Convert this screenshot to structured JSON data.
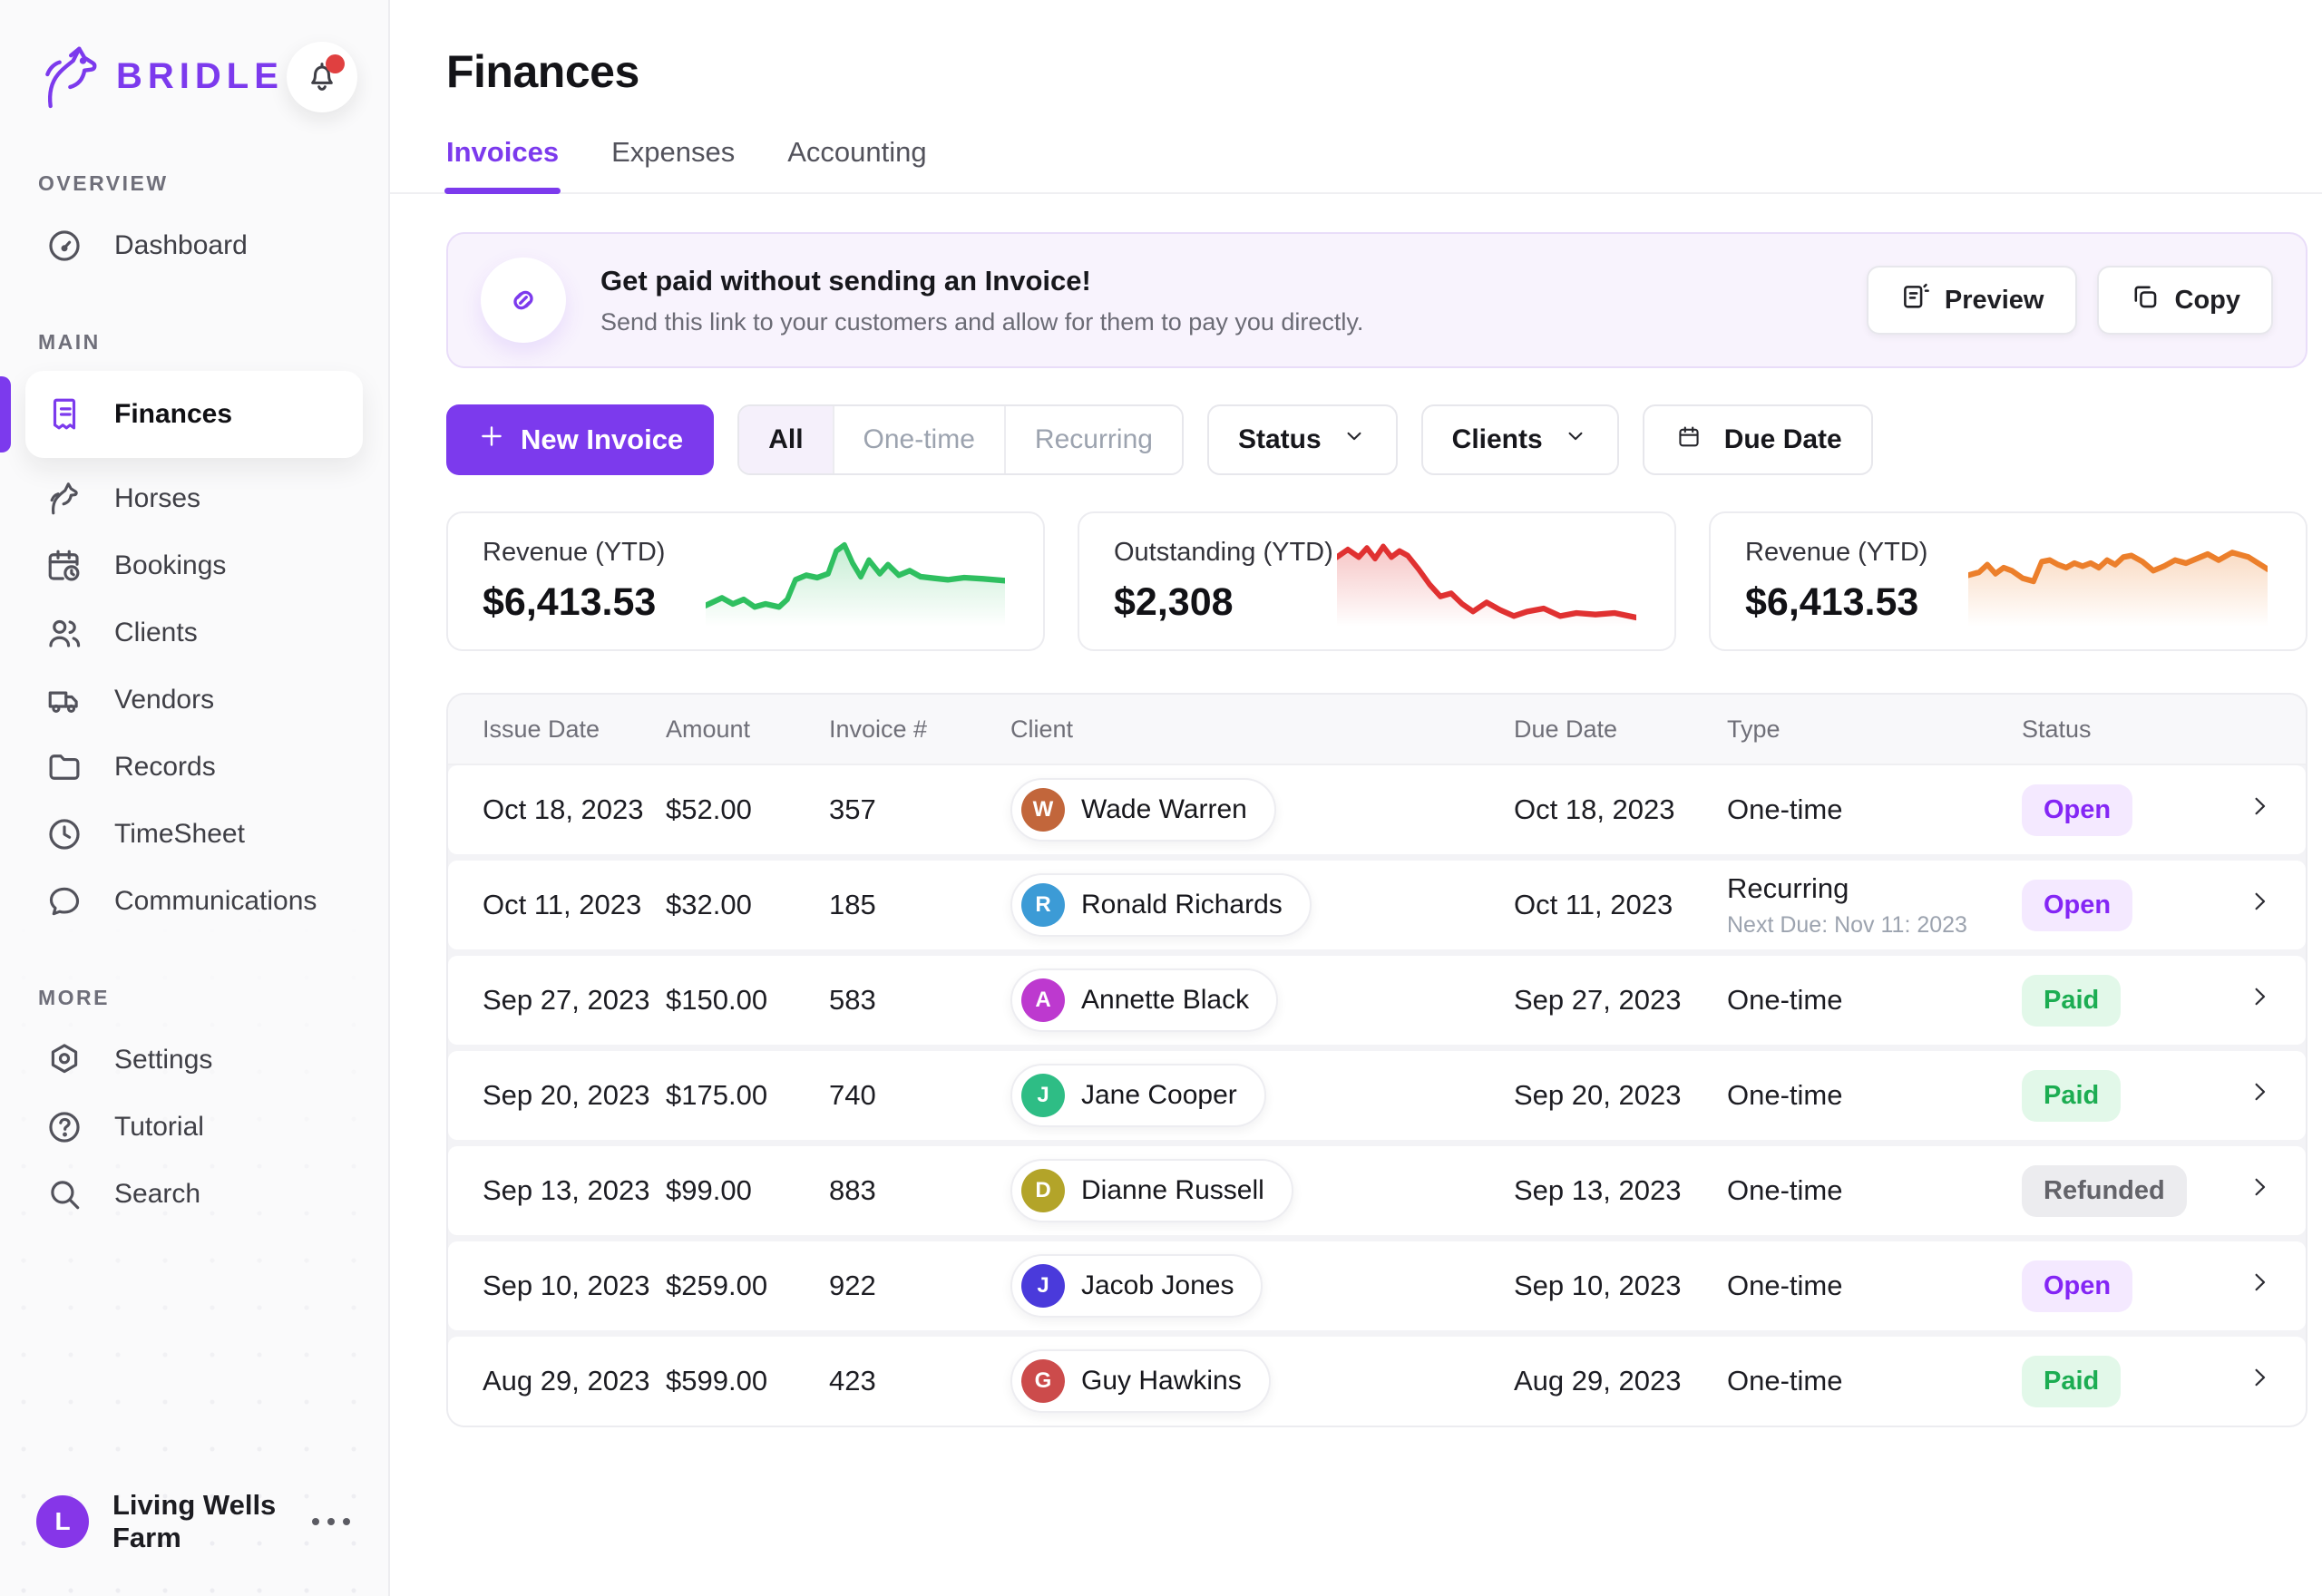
{
  "brand": {
    "name": "BRIDLE",
    "color": "#7c3aed"
  },
  "sidebar": {
    "sections": [
      {
        "label": "OVERVIEW",
        "items": [
          {
            "id": "dashboard",
            "label": "Dashboard",
            "icon": "gauge",
            "active": false
          }
        ]
      },
      {
        "label": "MAIN",
        "items": [
          {
            "id": "finances",
            "label": "Finances",
            "icon": "receipt",
            "active": true
          },
          {
            "id": "horses",
            "label": "Horses",
            "icon": "horse",
            "active": false
          },
          {
            "id": "bookings",
            "label": "Bookings",
            "icon": "calendar-clock",
            "active": false
          },
          {
            "id": "clients",
            "label": "Clients",
            "icon": "users",
            "active": false
          },
          {
            "id": "vendors",
            "label": "Vendors",
            "icon": "truck",
            "active": false
          },
          {
            "id": "records",
            "label": "Records",
            "icon": "folder",
            "active": false
          },
          {
            "id": "timesheet",
            "label": "TimeSheet",
            "icon": "clock",
            "active": false
          },
          {
            "id": "communications",
            "label": "Communications",
            "icon": "chat",
            "active": false
          }
        ]
      },
      {
        "label": "MORE",
        "items": [
          {
            "id": "settings",
            "label": "Settings",
            "icon": "settings",
            "active": false
          },
          {
            "id": "tutorial",
            "label": "Tutorial",
            "icon": "help",
            "active": false
          },
          {
            "id": "search",
            "label": "Search",
            "icon": "search",
            "active": false
          }
        ]
      }
    ],
    "notification_icon": "bell",
    "user": {
      "initial": "L",
      "name": "Living Wells Farm",
      "avatar_color": "#8636e8"
    }
  },
  "header": {
    "title": "Finances",
    "tabs": [
      {
        "label": "Invoices",
        "active": true
      },
      {
        "label": "Expenses",
        "active": false
      },
      {
        "label": "Accounting",
        "active": false
      }
    ]
  },
  "banner": {
    "icon": "link",
    "title": "Get paid without sending an Invoice!",
    "subtitle": "Send this link to your customers and allow for them to pay you directly.",
    "buttons": [
      {
        "id": "preview",
        "label": "Preview",
        "icon": "preview"
      },
      {
        "id": "copy",
        "label": "Copy",
        "icon": "copy"
      }
    ]
  },
  "filters": {
    "new_invoice_label": "New Invoice",
    "segments": [
      {
        "label": "All",
        "active": true
      },
      {
        "label": "One-time",
        "active": false
      },
      {
        "label": "Recurring",
        "active": false
      }
    ],
    "dropdowns": [
      {
        "id": "status",
        "label": "Status"
      },
      {
        "id": "clients",
        "label": "Clients"
      }
    ],
    "due_date_label": "Due Date"
  },
  "stats": [
    {
      "label": "Revenue (YTD)",
      "value": "$6,413.53",
      "color": "#2fbf60",
      "points": [
        [
          0,
          23
        ],
        [
          6,
          20.5
        ],
        [
          10,
          22.5
        ],
        [
          14,
          21
        ],
        [
          18,
          23.5
        ],
        [
          22,
          22.5
        ],
        [
          27,
          23.5
        ],
        [
          30,
          21
        ],
        [
          33,
          14.5
        ],
        [
          37,
          13
        ],
        [
          41,
          13.8
        ],
        [
          45,
          12.5
        ],
        [
          48,
          5
        ],
        [
          51,
          3
        ],
        [
          54,
          9
        ],
        [
          57,
          13.5
        ],
        [
          60,
          8
        ],
        [
          64,
          12.5
        ],
        [
          67,
          9.5
        ],
        [
          71,
          13
        ],
        [
          75,
          11.5
        ],
        [
          79,
          13.5
        ],
        [
          84,
          14
        ],
        [
          89,
          14.5
        ],
        [
          95,
          13.8
        ],
        [
          102,
          14.2
        ],
        [
          110,
          14.8
        ]
      ]
    },
    {
      "label": "Outstanding (YTD)",
      "value": "$2,308",
      "color": "#e03131",
      "points": [
        [
          0,
          7
        ],
        [
          4,
          4.5
        ],
        [
          8,
          7
        ],
        [
          11,
          4
        ],
        [
          14,
          7.5
        ],
        [
          17,
          3.5
        ],
        [
          20,
          7
        ],
        [
          23,
          5
        ],
        [
          26,
          6.5
        ],
        [
          30,
          11
        ],
        [
          34,
          16
        ],
        [
          38,
          20
        ],
        [
          42,
          19
        ],
        [
          46,
          22.5
        ],
        [
          50,
          25
        ],
        [
          55,
          22
        ],
        [
          60,
          24.5
        ],
        [
          65,
          26.5
        ],
        [
          70,
          25
        ],
        [
          76,
          24
        ],
        [
          82,
          26.5
        ],
        [
          88,
          25.5
        ],
        [
          95,
          26
        ],
        [
          102,
          25.5
        ],
        [
          110,
          27
        ]
      ]
    },
    {
      "label": "Revenue (YTD)",
      "value": "$6,413.53",
      "color": "#ec7f2b",
      "points": [
        [
          0,
          13
        ],
        [
          4,
          12
        ],
        [
          7,
          9.5
        ],
        [
          10,
          12.5
        ],
        [
          13,
          10.5
        ],
        [
          16,
          11.5
        ],
        [
          20,
          14
        ],
        [
          24,
          15
        ],
        [
          27,
          8.5
        ],
        [
          30,
          8
        ],
        [
          33,
          9.5
        ],
        [
          36,
          10.5
        ],
        [
          39,
          9
        ],
        [
          42,
          10
        ],
        [
          45,
          9
        ],
        [
          48,
          10.5
        ],
        [
          51,
          8
        ],
        [
          54,
          9.5
        ],
        [
          57,
          7
        ],
        [
          60,
          6.5
        ],
        [
          64,
          8.5
        ],
        [
          68,
          11.5
        ],
        [
          72,
          10
        ],
        [
          76,
          8
        ],
        [
          80,
          9
        ],
        [
          84,
          7.5
        ],
        [
          88,
          6
        ],
        [
          92,
          8
        ],
        [
          97,
          5.5
        ],
        [
          103,
          7
        ],
        [
          110,
          11
        ]
      ]
    }
  ],
  "table": {
    "columns": [
      "Issue Date",
      "Amount",
      "Invoice #",
      "Client",
      "Due Date",
      "Type",
      "Status"
    ],
    "rows": [
      {
        "issue_date": "Oct 18, 2023",
        "amount": "$52.00",
        "invoice_no": "357",
        "client": "Wade Warren",
        "avatar_color": "#c2663b",
        "due_date": "Oct 18, 2023",
        "type": "One-time",
        "type_sub": "",
        "status": "Open"
      },
      {
        "issue_date": "Oct 11, 2023",
        "amount": "$32.00",
        "invoice_no": "185",
        "client": "Ronald Richards",
        "avatar_color": "#3c9bd6",
        "due_date": "Oct 11, 2023",
        "type": "Recurring",
        "type_sub": "Next Due: Nov 11: 2023",
        "status": "Open"
      },
      {
        "issue_date": "Sep 27, 2023",
        "amount": "$150.00",
        "invoice_no": "583",
        "client": "Annette Black",
        "avatar_color": "#bd39cf",
        "due_date": "Sep 27, 2023",
        "type": "One-time",
        "type_sub": "",
        "status": "Paid"
      },
      {
        "issue_date": "Sep 20, 2023",
        "amount": "$175.00",
        "invoice_no": "740",
        "client": "Jane Cooper",
        "avatar_color": "#2ebd85",
        "due_date": "Sep 20, 2023",
        "type": "One-time",
        "type_sub": "",
        "status": "Paid"
      },
      {
        "issue_date": "Sep 13, 2023",
        "amount": "$99.00",
        "invoice_no": "883",
        "client": "Dianne Russell",
        "avatar_color": "#b3a429",
        "due_date": "Sep 13, 2023",
        "type": "One-time",
        "type_sub": "",
        "status": "Refunded"
      },
      {
        "issue_date": "Sep 10, 2023",
        "amount": "$259.00",
        "invoice_no": "922",
        "client": "Jacob Jones",
        "avatar_color": "#4a3adb",
        "due_date": "Sep 10, 2023",
        "type": "One-time",
        "type_sub": "",
        "status": "Open"
      },
      {
        "issue_date": "Aug 29, 2023",
        "amount": "$599.00",
        "invoice_no": "423",
        "client": "Guy Hawkins",
        "avatar_color": "#cc4b4b",
        "due_date": "Aug 29, 2023",
        "type": "One-time",
        "type_sub": "",
        "status": "Paid"
      }
    ],
    "status_styles": {
      "Open": {
        "fg": "#8426f5",
        "bg": "#f4e9ff"
      },
      "Paid": {
        "fg": "#1cad52",
        "bg": "#e2f8e9"
      },
      "Refunded": {
        "fg": "#636369",
        "bg": "#ececef"
      }
    }
  }
}
